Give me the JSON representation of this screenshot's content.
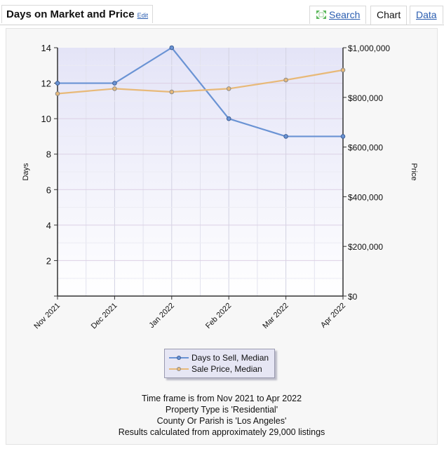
{
  "header": {
    "title": "Days on Market and Price",
    "edit_label": "Edit",
    "tabs": {
      "search": "Search",
      "chart": "Chart",
      "data": "Data"
    }
  },
  "chart_data": {
    "type": "line",
    "categories": [
      "Nov 2021",
      "Dec 2021",
      "Jan 2022",
      "Feb 2022",
      "Mar 2022",
      "Apr 2022"
    ],
    "series": [
      {
        "name": "Days to Sell, Median",
        "axis": "left",
        "color": "#6a93d4",
        "values": [
          12,
          12,
          14,
          10,
          9,
          9
        ]
      },
      {
        "name": "Sale Price, Median",
        "axis": "right",
        "color": "#e8b978",
        "values": [
          815000,
          835000,
          822000,
          835000,
          870000,
          910000
        ]
      }
    ],
    "ylabel": "Days",
    "y2label": "Price",
    "ylim": [
      0,
      14
    ],
    "y2lim": [
      0,
      1000000
    ],
    "yticks": [
      "2",
      "4",
      "6",
      "8",
      "10",
      "12",
      "14"
    ],
    "y2ticks": [
      "$0",
      "$200,000",
      "$400,000",
      "$600,000",
      "$800,000",
      "$1,000,000"
    ],
    "grid": true,
    "legend": "bottom-center"
  },
  "footer": {
    "line1": "Time frame is from Nov 2021 to Apr 2022",
    "line2": "Property Type is 'Residential'",
    "line3": "County Or Parish is 'Los Angeles'",
    "line4": "Results calculated from approximately 29,000 listings"
  }
}
